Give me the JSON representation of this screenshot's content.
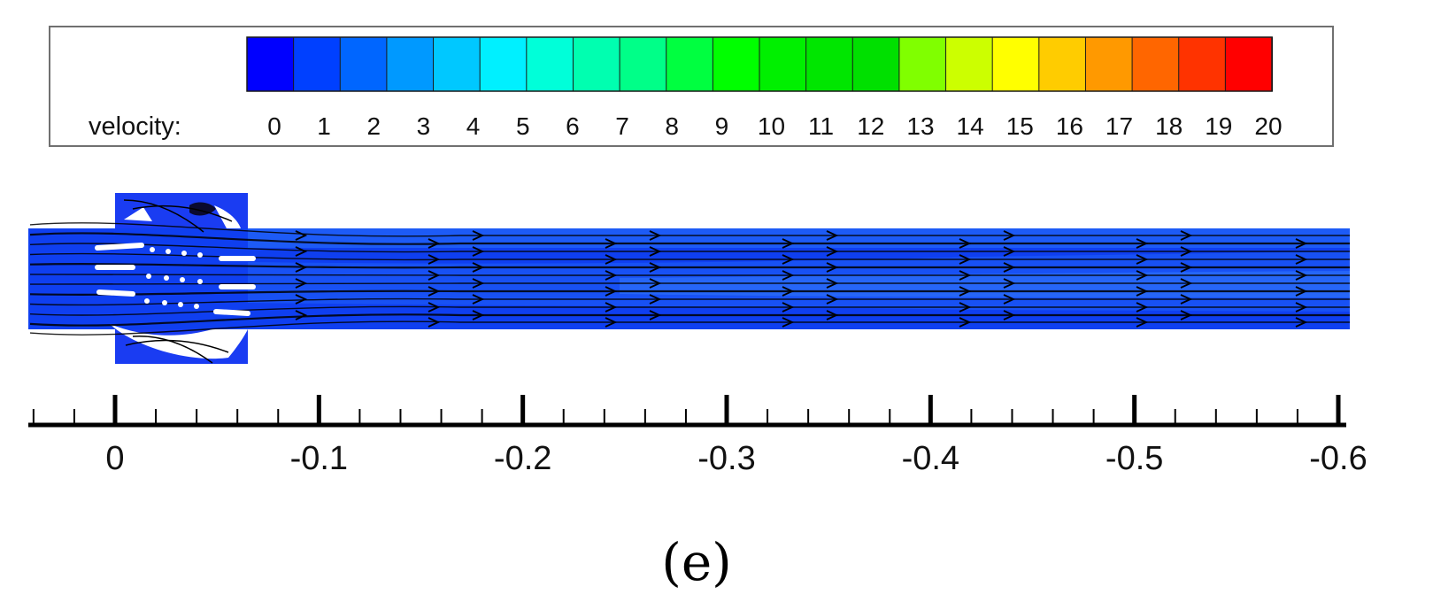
{
  "legend": {
    "title": "velocity:",
    "colors": [
      "#0000ff",
      "#0040ff",
      "#0066ff",
      "#0099ff",
      "#00c8ff",
      "#00f0ff",
      "#00ffd9",
      "#00ffb0",
      "#00ff88",
      "#00ff40",
      "#00ff00",
      "#00f000",
      "#00e600",
      "#00e000",
      "#80ff00",
      "#ccff00",
      "#ffff00",
      "#ffcc00",
      "#ff9900",
      "#ff6600",
      "#ff3300",
      "#ff0000"
    ],
    "tick_labels": [
      "0",
      "1",
      "2",
      "3",
      "4",
      "5",
      "6",
      "7",
      "8",
      "9",
      "10",
      "11",
      "12",
      "13",
      "14",
      "15",
      "16",
      "17",
      "18",
      "19",
      "20"
    ]
  },
  "chart_data": {
    "type": "heatmap",
    "title": "",
    "xlabel": "",
    "ylabel": "",
    "colorbar_label": "velocity:",
    "colorbar_range": [
      0,
      20
    ],
    "colorbar_ticks": [
      0,
      1,
      2,
      3,
      4,
      5,
      6,
      7,
      8,
      9,
      10,
      11,
      12,
      13,
      14,
      15,
      16,
      17,
      18,
      19,
      20
    ],
    "x_axis": {
      "range": [
        0.04,
        -0.6
      ],
      "major_ticks": [
        0,
        -0.1,
        -0.2,
        -0.3,
        -0.4,
        -0.5,
        -0.6
      ],
      "tick_labels": [
        "0",
        "-0.1",
        "-0.2",
        "-0.3",
        "-0.4",
        "-0.5",
        "-0.6"
      ],
      "minor_step": 0.02
    },
    "flow_field": {
      "shown": "velocity contours with streamlines; flow direction toward -x",
      "dominant_velocity_range": [
        0,
        3
      ]
    }
  },
  "caption": "(e)"
}
